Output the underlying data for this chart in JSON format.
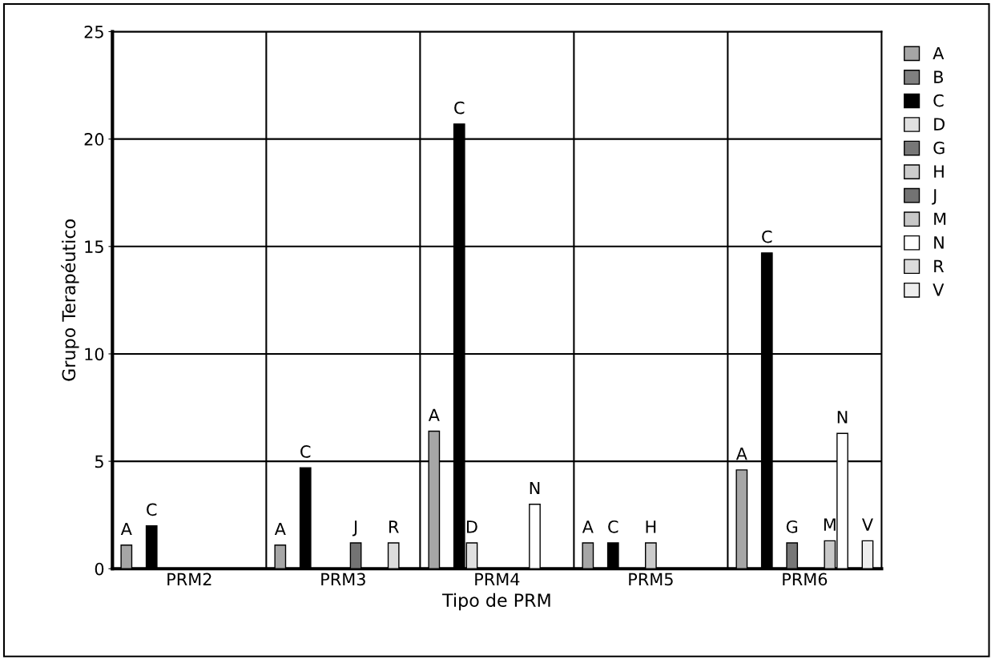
{
  "chart_data": {
    "type": "bar",
    "xlabel": "Tipo de PRM",
    "ylabel": "Grupo Terapéutico",
    "categories": [
      "PRM2",
      "PRM3",
      "PRM4",
      "PRM5",
      "PRM6"
    ],
    "series": [
      {
        "name": "A",
        "color": "#a6a6a6",
        "values": [
          1.1,
          1.1,
          6.4,
          1.2,
          4.6
        ]
      },
      {
        "name": "B",
        "color": "#808080",
        "values": [
          null,
          null,
          null,
          null,
          null
        ]
      },
      {
        "name": "C",
        "color": "#000000",
        "values": [
          2.0,
          4.7,
          20.7,
          1.2,
          14.7
        ]
      },
      {
        "name": "D",
        "color": "#e0e0e0",
        "values": [
          null,
          null,
          1.2,
          null,
          null
        ]
      },
      {
        "name": "G",
        "color": "#777777",
        "values": [
          null,
          null,
          null,
          null,
          1.2
        ]
      },
      {
        "name": "H",
        "color": "#cccccc",
        "values": [
          null,
          null,
          null,
          1.2,
          null
        ]
      },
      {
        "name": "J",
        "color": "#737373",
        "values": [
          null,
          1.2,
          null,
          null,
          null
        ]
      },
      {
        "name": "M",
        "color": "#c8c8c8",
        "values": [
          null,
          null,
          null,
          null,
          1.3
        ]
      },
      {
        "name": "N",
        "color": "#ffffff",
        "values": [
          null,
          null,
          3.0,
          null,
          6.3
        ]
      },
      {
        "name": "R",
        "color": "#dcdcdc",
        "values": [
          null,
          1.2,
          null,
          null,
          null
        ]
      },
      {
        "name": "V",
        "color": "#eeeeee",
        "values": [
          null,
          null,
          null,
          null,
          1.3
        ]
      }
    ],
    "ylim": [
      0,
      25
    ],
    "yticks": [
      0,
      5,
      10,
      15,
      20,
      25
    ],
    "grid": true,
    "legend": "right"
  }
}
